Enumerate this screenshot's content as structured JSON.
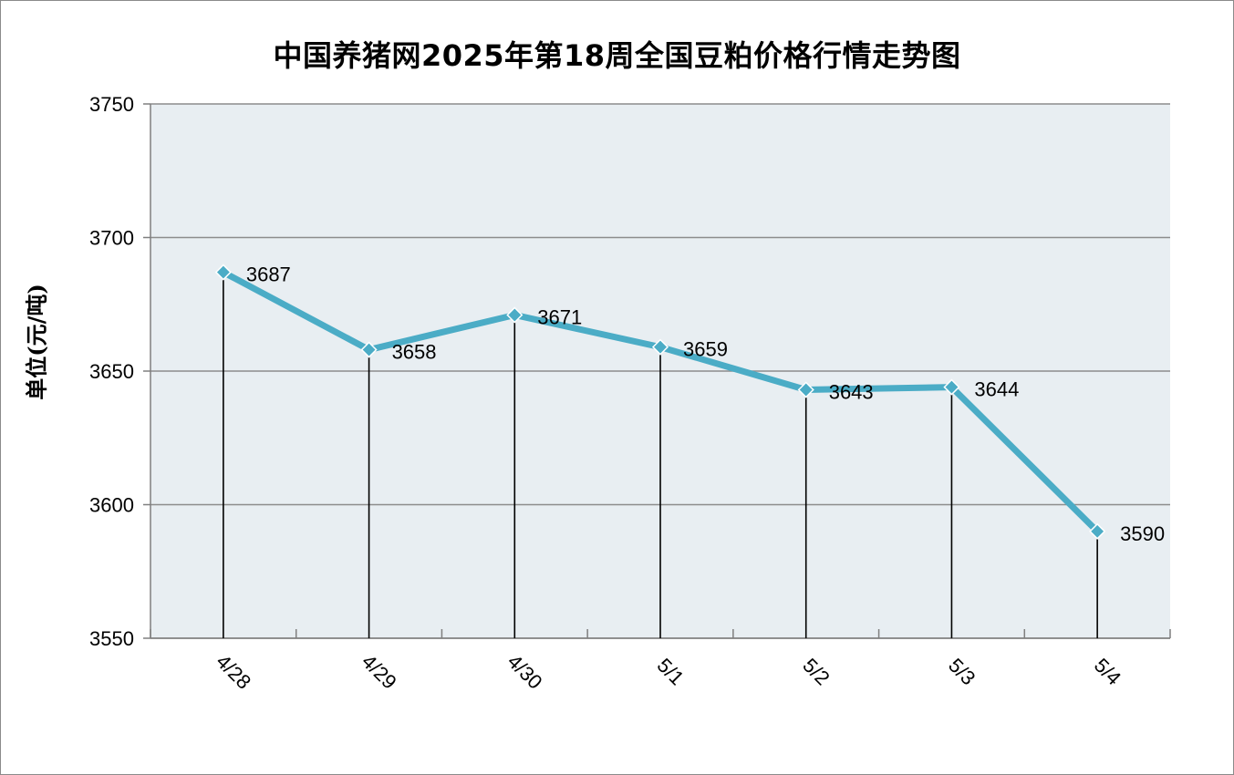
{
  "chart_data": {
    "type": "line",
    "title": "中国养猪网2025年第18周全国豆粕价格行情走势图",
    "ylabel": "单位(元/吨)",
    "xlabel": "",
    "categories": [
      "4/28",
      "4/29",
      "4/30",
      "5/1",
      "5/2",
      "5/3",
      "5/4"
    ],
    "series": [
      {
        "values": [
          3687,
          3658,
          3671,
          3659,
          3643,
          3644,
          3590
        ]
      }
    ],
    "ylim": [
      3550,
      3750
    ],
    "yticks": [
      3550,
      3600,
      3650,
      3700,
      3750
    ],
    "grid": true,
    "drop_lines": true,
    "data_labels": true,
    "colors": {
      "line": "#4BACC6",
      "plot_bg": "#E8EEF2",
      "grid": "#8C8C8C"
    }
  }
}
